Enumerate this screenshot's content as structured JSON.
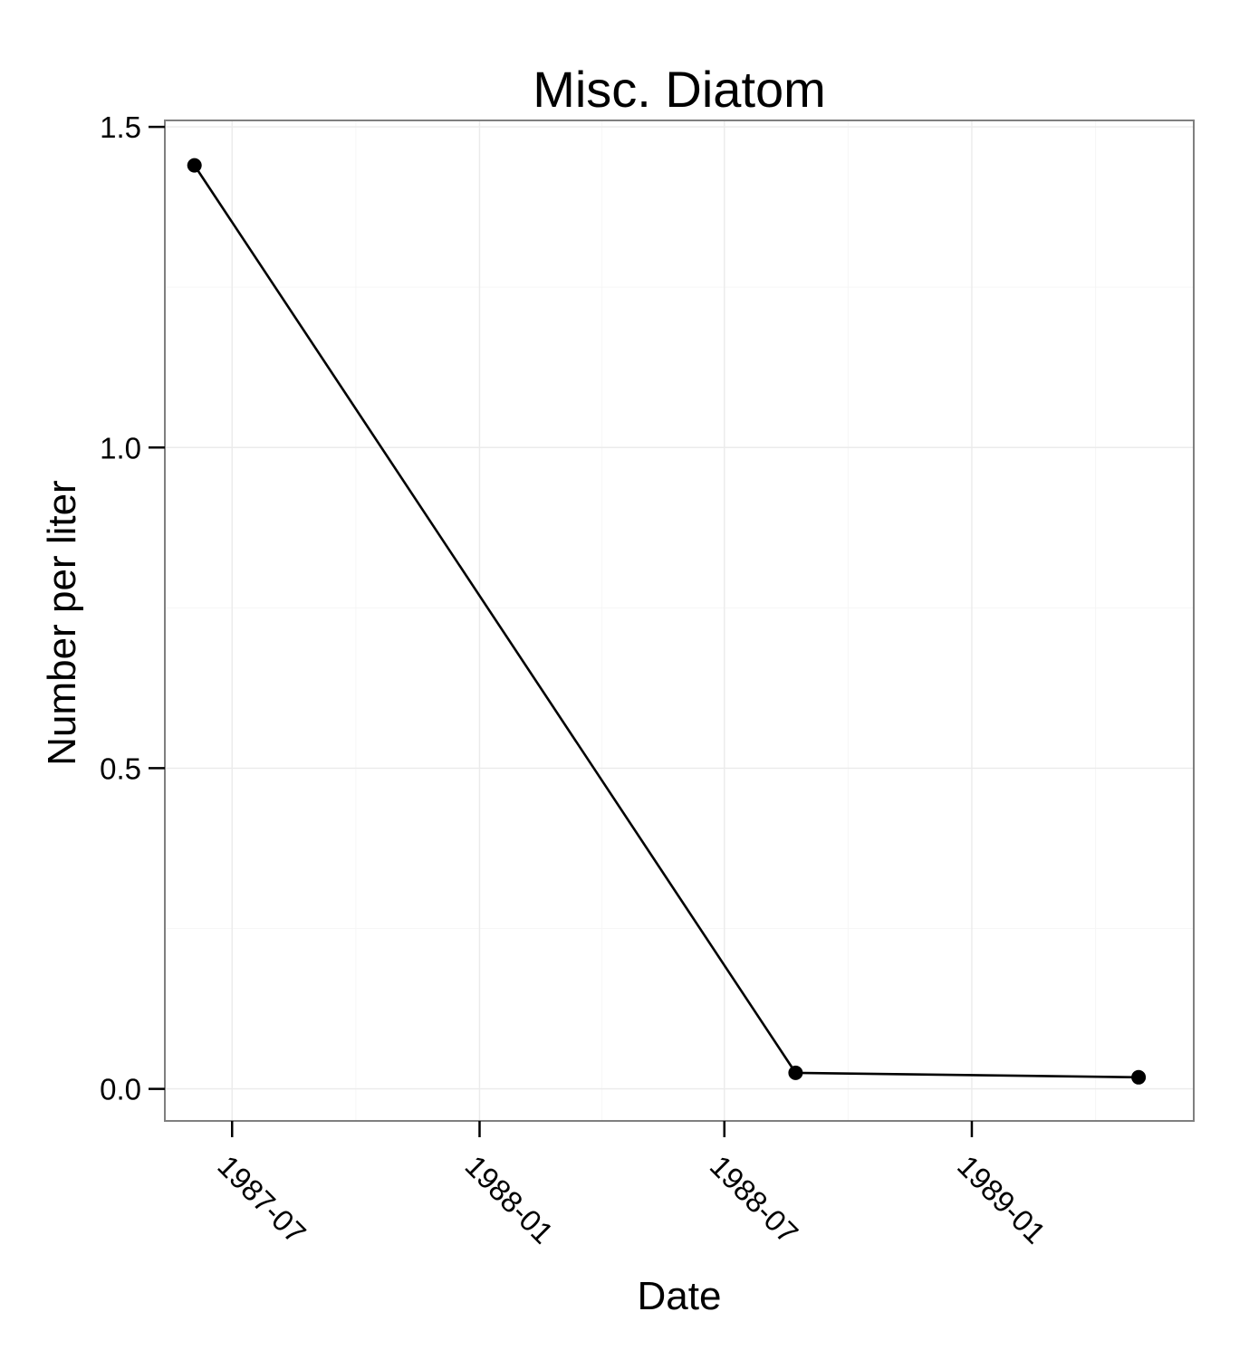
{
  "chart_data": {
    "type": "line",
    "title": "Misc. Diatom",
    "xlabel": "Date",
    "ylabel": "Number per liter",
    "x_axis_type": "date",
    "xlim": [
      "1987-05-12",
      "1989-06-15"
    ],
    "ylim": [
      -0.05,
      1.51
    ],
    "x_ticks": [
      "1987-07-01",
      "1988-01-01",
      "1988-07-01",
      "1989-01-01"
    ],
    "x_tick_labels": [
      "1987-07",
      "1988-01",
      "1988-07",
      "1989-01"
    ],
    "y_ticks": [
      0.0,
      0.5,
      1.0,
      1.5
    ],
    "y_tick_labels": [
      "0.0",
      "0.5",
      "1.0",
      "1.5"
    ],
    "grid": true,
    "legend": "none",
    "series": [
      {
        "color": "#000000",
        "points": [
          {
            "x": "1987-06-03",
            "y": 1.44
          },
          {
            "x": "1988-08-23",
            "y": 0.025
          },
          {
            "x": "1989-05-05",
            "y": 0.018
          }
        ]
      }
    ]
  }
}
